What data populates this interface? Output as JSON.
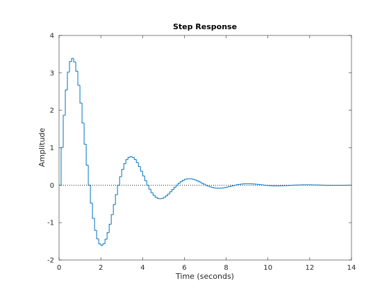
{
  "chart_data": {
    "type": "stairs",
    "title": "Step Response",
    "x_label": "Time (seconds)",
    "y_label": "Amplitude",
    "x": [
      0,
      0.1,
      0.2,
      0.3,
      0.4,
      0.5,
      0.6,
      0.7,
      0.8,
      0.9,
      1,
      1.1,
      1.2,
      1.3,
      1.4,
      1.5,
      1.6,
      1.7,
      1.8,
      1.9,
      2,
      2.1,
      2.2,
      2.3,
      2.4,
      2.5,
      2.6,
      2.7,
      2.8,
      2.9,
      3,
      3.1,
      3.2,
      3.3,
      3.4,
      3.5,
      3.6,
      3.7,
      3.8,
      3.9,
      4,
      4.1,
      4.2,
      4.3,
      4.4,
      4.5,
      4.6,
      4.7,
      4.8,
      4.9,
      5,
      5.1,
      5.2,
      5.3,
      5.4,
      5.5,
      5.6,
      5.7,
      5.8,
      5.9,
      6,
      6.1,
      6.2,
      6.3,
      6.4,
      6.5,
      6.6,
      6.7,
      6.8,
      6.9,
      7,
      7.1,
      7.2,
      7.3,
      7.4,
      7.5,
      7.6,
      7.7,
      7.8,
      7.9,
      8,
      8.1,
      8.2,
      8.3,
      8.4,
      8.5,
      8.6,
      8.7,
      8.8,
      8.9,
      9,
      9.1,
      9.2,
      9.3,
      9.4,
      9.5,
      9.6,
      9.7,
      9.8,
      9.9,
      10,
      10.1,
      10.2,
      10.3,
      10.4,
      10.5,
      10.6,
      10.7,
      10.8,
      10.9,
      11,
      11.1,
      11.2,
      11.3,
      11.4,
      11.5,
      11.6,
      11.7,
      11.8,
      11.9,
      12,
      12.1,
      12.2,
      12.3,
      12.4,
      12.5,
      12.6,
      12.7,
      12.8,
      12.9,
      13,
      13.1,
      13.2,
      13.3,
      13.4,
      13.5,
      13.6,
      13.7,
      13.8,
      13.9,
      14
    ],
    "series": [
      {
        "color": "#0072bd",
        "values": [
          0,
          1.008,
          1.865,
          2.541,
          3.021,
          3.301,
          3.387,
          3.294,
          3.045,
          2.669,
          2.196,
          1.661,
          1.096,
          0.533,
          0,
          -0.479,
          -0.886,
          -1.207,
          -1.435,
          -1.568,
          -1.609,
          -1.565,
          -1.446,
          -1.268,
          -1.043,
          -0.789,
          -0.521,
          -0.253,
          0,
          0.227,
          0.421,
          0.573,
          0.682,
          0.745,
          0.764,
          0.743,
          0.687,
          0.602,
          0.495,
          0.375,
          0.247,
          0.12,
          0,
          -0.108,
          -0.2,
          -0.272,
          -0.324,
          -0.354,
          -0.363,
          -0.353,
          -0.326,
          -0.286,
          -0.235,
          -0.178,
          -0.117,
          -0.057,
          0,
          0.051,
          0.095,
          0.129,
          0.154,
          0.168,
          0.172,
          0.168,
          0.155,
          0.136,
          0.112,
          0.085,
          0.056,
          0.027,
          0,
          -0.024,
          -0.045,
          -0.061,
          -0.073,
          -0.08,
          -0.082,
          -0.08,
          -0.074,
          -0.065,
          -0.053,
          -0.04,
          -0.027,
          -0.013,
          0,
          0.012,
          0.021,
          0.029,
          0.035,
          0.038,
          0.039,
          0.038,
          0.035,
          0.031,
          0.025,
          0.019,
          0.013,
          0.006,
          0,
          -0.006,
          -0.01,
          -0.014,
          -0.016,
          -0.018,
          -0.018,
          -0.018,
          -0.017,
          -0.015,
          -0.012,
          -0.009,
          -0.006,
          -0.003,
          0,
          0.003,
          0.005,
          0.007,
          0.008,
          0.009,
          0.009,
          0.009,
          0.008,
          0.007,
          0.006,
          0.004,
          0.003,
          0.001,
          0,
          -0.001,
          -0.002,
          -0.003,
          -0.004,
          -0.004,
          -0.004,
          -0.004,
          -0.004,
          -0.003,
          -0.003,
          -0.002,
          -0.001,
          -0.001,
          0
        ]
      }
    ],
    "xlim": [
      0,
      14
    ],
    "xticks": [
      0,
      2,
      4,
      6,
      8,
      10,
      12,
      14
    ],
    "ylim": [
      -2,
      4
    ],
    "yticks": [
      -2,
      -1,
      0,
      1,
      2,
      3,
      4
    ]
  }
}
